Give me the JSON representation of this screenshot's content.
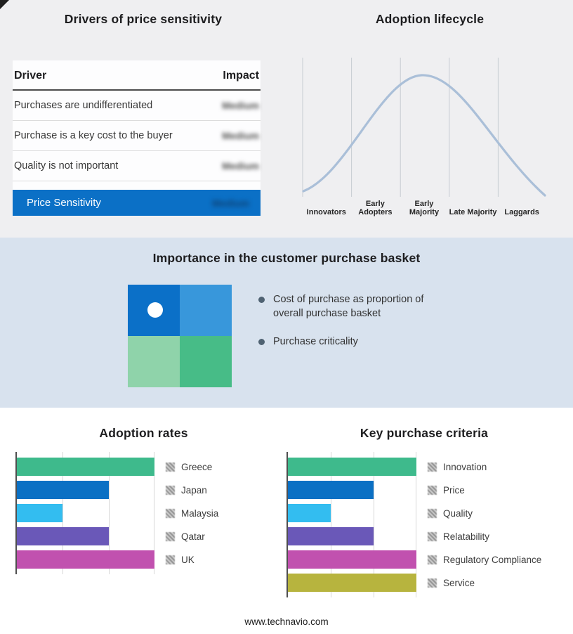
{
  "drivers": {
    "title": "Drivers of price sensitivity",
    "columns": {
      "driver": "Driver",
      "impact": "Impact"
    },
    "rows": [
      {
        "driver": "Purchases are undifferentiated",
        "impact": "Medium"
      },
      {
        "driver": "Purchase is a key cost to the buyer",
        "impact": "Medium"
      },
      {
        "driver": "Quality is not important",
        "impact": "Medium"
      }
    ],
    "summary": {
      "label": "Price Sensitivity",
      "impact": "Medium"
    },
    "accent_color": "#0b70c6",
    "impact_values_redacted": true
  },
  "lifecycle": {
    "title": "Adoption lifecycle",
    "stages": [
      "Innovators",
      "Early Adopters",
      "Early Majority",
      "Late Majority",
      "Laggards"
    ],
    "curve_color": "#aabfd8"
  },
  "basket": {
    "title": "Importance in the customer purchase basket",
    "bullets": [
      "Cost of purchase as proportion of overall purchase basket",
      "Purchase criticality"
    ],
    "quadrant_colors": {
      "top_left": "#0b70c8",
      "top_right": "#3897db",
      "bottom_left": "#8fd3aa",
      "bottom_right": "#47bc87"
    },
    "band_color": "#d8e2ee"
  },
  "icons": {
    "legend_swatch": "hatched-square-redacted-flag",
    "bullet": "filled-circle",
    "quadrant_marker": "white-circle"
  },
  "footer": {
    "url": "www.technavio.com"
  },
  "chart_data": [
    {
      "type": "line",
      "title": "Adoption lifecycle",
      "x_labels": [
        "Innovators",
        "Early Adopters",
        "Early Majority",
        "Late Majority",
        "Laggards"
      ],
      "shape": "bell curve rising from Innovators, peaking over Early Majority, falling to Laggards",
      "grid": "vertical stage-separator lines, no y axis",
      "legend_position": "none"
    },
    {
      "type": "bar",
      "title": "Adoption rates",
      "orientation": "horizontal",
      "categories": [
        "Greece",
        "Japan",
        "Malaysia",
        "Qatar",
        "UK"
      ],
      "values": [
        100,
        66.7,
        33.3,
        66.7,
        100
      ],
      "axis_max": 100,
      "gridlines": [
        33.3,
        66.7,
        100
      ],
      "colors": [
        "#3eba8c",
        "#0b70c4",
        "#33bdf0",
        "#6a58b8",
        "#c151af"
      ],
      "legend_position": "right"
    },
    {
      "type": "bar",
      "title": "Key purchase criteria",
      "orientation": "horizontal",
      "categories": [
        "Innovation",
        "Price",
        "Quality",
        "Relatability",
        "Regulatory Compliance",
        "Service"
      ],
      "values": [
        100,
        66.7,
        33.3,
        66.7,
        100,
        100
      ],
      "axis_max": 100,
      "gridlines": [
        33.3,
        66.7,
        100
      ],
      "colors": [
        "#3eba8c",
        "#0b70c4",
        "#33bdf0",
        "#6a58b8",
        "#c151af",
        "#b7b43e"
      ],
      "legend_position": "right"
    }
  ]
}
